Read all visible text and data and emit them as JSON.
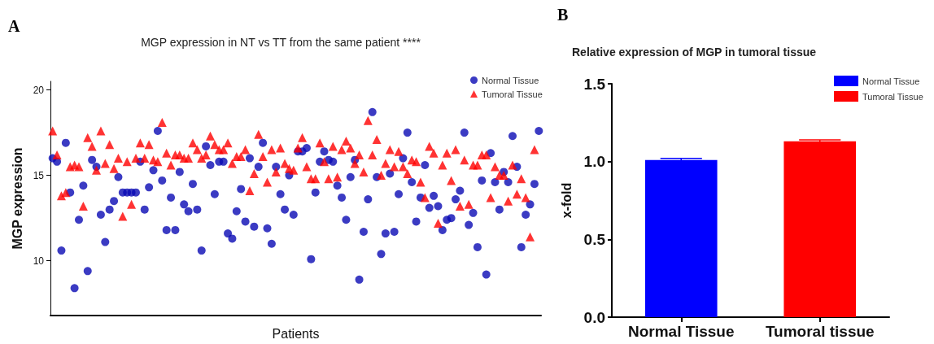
{
  "chart_data": [
    {
      "type": "scatter",
      "title": "MGP expression in NT vs TT from the same patient ****",
      "xlabel": "Patients",
      "ylabel": "MGP expression",
      "annotations": [
        "A"
      ],
      "categories": [
        null,
        null,
        null,
        null,
        null,
        null,
        null,
        null,
        null,
        null,
        null,
        null,
        null,
        null,
        null,
        null,
        null,
        null,
        null,
        null,
        null,
        null,
        null,
        null,
        null,
        null,
        null,
        null,
        null,
        null,
        null,
        null,
        null,
        null,
        null,
        null,
        null,
        null,
        null,
        null,
        null,
        null,
        null,
        null,
        null,
        null,
        null,
        null,
        null,
        null,
        null,
        null,
        null,
        null,
        null,
        null,
        null,
        null,
        null,
        null,
        null,
        null,
        null,
        null,
        null,
        null,
        null,
        null,
        null,
        null,
        null,
        null,
        null,
        null,
        null,
        null,
        null,
        null,
        null,
        null,
        null,
        null,
        null,
        null,
        null,
        null,
        null,
        null,
        null,
        null,
        null,
        null,
        null,
        null,
        null,
        null,
        null,
        null,
        null,
        null,
        null,
        null,
        null,
        null,
        null,
        null,
        null,
        null,
        null,
        null,
        null,
        null
      ],
      "series": [
        {
          "name": "Normal Tissue",
          "color": "#0a0ab4",
          "marker": "circle",
          "values": [
            16.0,
            15.8,
            10.6,
            16.9,
            14.0,
            8.4,
            12.4,
            14.4,
            9.4,
            15.9,
            15.5,
            12.7,
            11.1,
            13.0,
            13.5,
            14.9,
            14.0,
            14.0,
            14.0,
            14.0,
            15.8,
            13.0,
            14.3,
            15.3,
            17.6,
            14.7,
            11.8,
            13.7,
            11.8,
            15.2,
            13.3,
            12.9,
            14.5,
            13.0,
            10.6,
            16.7,
            15.6,
            13.9,
            15.8,
            15.8,
            11.6,
            11.3,
            12.9,
            14.2,
            12.3,
            16.0,
            12.0,
            15.5,
            16.9,
            11.9,
            11.0,
            15.5,
            13.9,
            13.0,
            15.0,
            12.7,
            16.4,
            16.4,
            16.6,
            10.1,
            14.0,
            15.8,
            16.4,
            15.9,
            15.8,
            14.4,
            13.7,
            12.4,
            14.9,
            15.9,
            8.9,
            11.7,
            13.6,
            18.7,
            14.9,
            10.4,
            11.6,
            15.1,
            11.7,
            13.9,
            16.0,
            17.5,
            14.6,
            12.3,
            13.7,
            15.6,
            13.1,
            13.8,
            13.2,
            11.8,
            12.4,
            12.5,
            13.6,
            14.1,
            17.5,
            12.1,
            12.8,
            10.8,
            14.7,
            9.2,
            16.3,
            14.6,
            13.0,
            15.2,
            14.6,
            17.3,
            15.5,
            10.8,
            12.7,
            13.3,
            14.5,
            17.6
          ]
        },
        {
          "name": "Tumoral Tissue",
          "color": "#ff0000",
          "marker": "triangle",
          "values": [
            17.6,
            16.2,
            13.8,
            14.0,
            15.5,
            15.6,
            15.5,
            13.2,
            17.2,
            16.7,
            15.3,
            17.6,
            15.7,
            16.8,
            15.4,
            16.0,
            12.6,
            15.8,
            13.3,
            16.0,
            16.9,
            16.0,
            16.8,
            15.9,
            15.8,
            18.1,
            16.3,
            15.6,
            16.2,
            16.2,
            16.0,
            16.0,
            16.9,
            16.5,
            16.0,
            16.2,
            17.3,
            16.8,
            16.5,
            16.5,
            16.9,
            15.7,
            16.1,
            16.1,
            16.5,
            14.1,
            15.1,
            17.4,
            16.1,
            14.6,
            16.5,
            15.2,
            16.6,
            15.7,
            15.4,
            15.3,
            16.6,
            17.2,
            15.5,
            14.8,
            14.8,
            16.9,
            15.8,
            14.8,
            16.7,
            14.9,
            16.5,
            17.0,
            16.6,
            15.7,
            16.2,
            15.2,
            18.2,
            16.2,
            17.1,
            15.0,
            15.7,
            16.5,
            15.5,
            16.4,
            15.5,
            15.1,
            15.9,
            15.8,
            14.6,
            13.7,
            16.7,
            16.3,
            12.2,
            15.6,
            16.3,
            14.7,
            16.5,
            13.2,
            15.9,
            13.3,
            15.6,
            15.6,
            16.2,
            16.2,
            13.7,
            15.5,
            15.0,
            15.0,
            13.5,
            15.6,
            13.9,
            14.8,
            13.7,
            11.4,
            16.5,
            null
          ]
        }
      ],
      "ylim": [
        6.8,
        20.5
      ],
      "yticks": [
        10,
        15,
        20
      ],
      "grid": false,
      "legend": "top right",
      "tick_labels": "y"
    },
    {
      "type": "bar",
      "title": "Relative expression of MGP in tumoral tissue",
      "ylabel": "x-fold",
      "annotations": [
        "B"
      ],
      "categories": [
        "Normal Tissue",
        "Tumoral tissue"
      ],
      "stacked": true,
      "series": [
        {
          "name": "Normal Tissue",
          "color": "#0000ff",
          "values": [
            1.01,
            null
          ],
          "errors": [
            0.01,
            null
          ]
        },
        {
          "name": "Tumoral Tissue",
          "color": "#ff0000",
          "values": [
            null,
            1.13
          ],
          "errors": [
            null,
            0.01
          ]
        }
      ],
      "ylim": [
        0,
        1.5
      ],
      "yticks": [
        {
          "value": 0,
          "label": "0.0"
        },
        {
          "value": 0.5,
          "label": "0.5"
        },
        {
          "value": 1,
          "label": "1.0"
        },
        {
          "value": 1.5,
          "label": "1.5"
        }
      ],
      "grid": false,
      "legend": "top right"
    }
  ]
}
